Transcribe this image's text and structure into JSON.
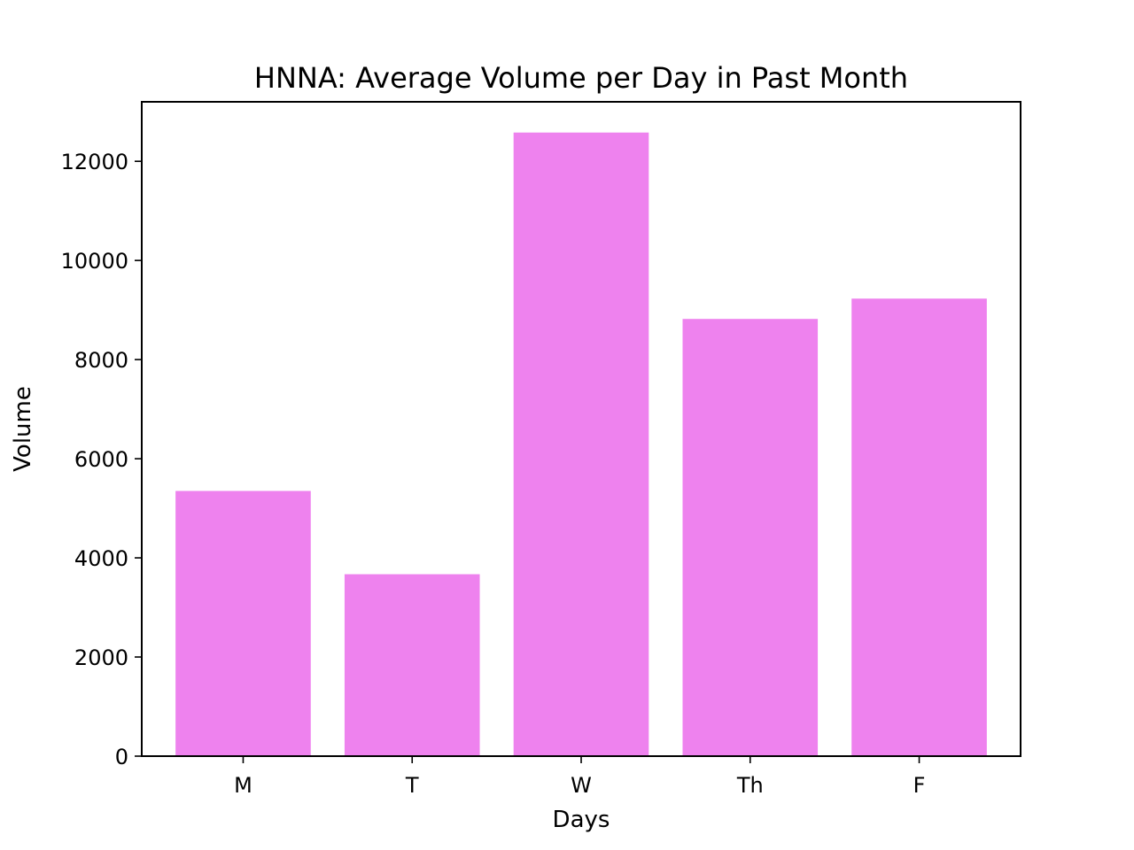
{
  "chart_data": {
    "type": "bar",
    "title": "HNNA: Average Volume per Day in Past Month",
    "xlabel": "Days",
    "ylabel": "Volume",
    "categories": [
      "M",
      "T",
      "W",
      "Th",
      "F"
    ],
    "values": [
      5350,
      3670,
      12580,
      8820,
      9230
    ],
    "ylim": [
      0,
      13200
    ],
    "yticks": [
      0,
      2000,
      4000,
      6000,
      8000,
      10000,
      12000
    ],
    "ytick_labels": [
      "0",
      "2000",
      "4000",
      "6000",
      "8000",
      "10000",
      "12000"
    ],
    "bar_color": "#ee82ee",
    "grid": false
  }
}
